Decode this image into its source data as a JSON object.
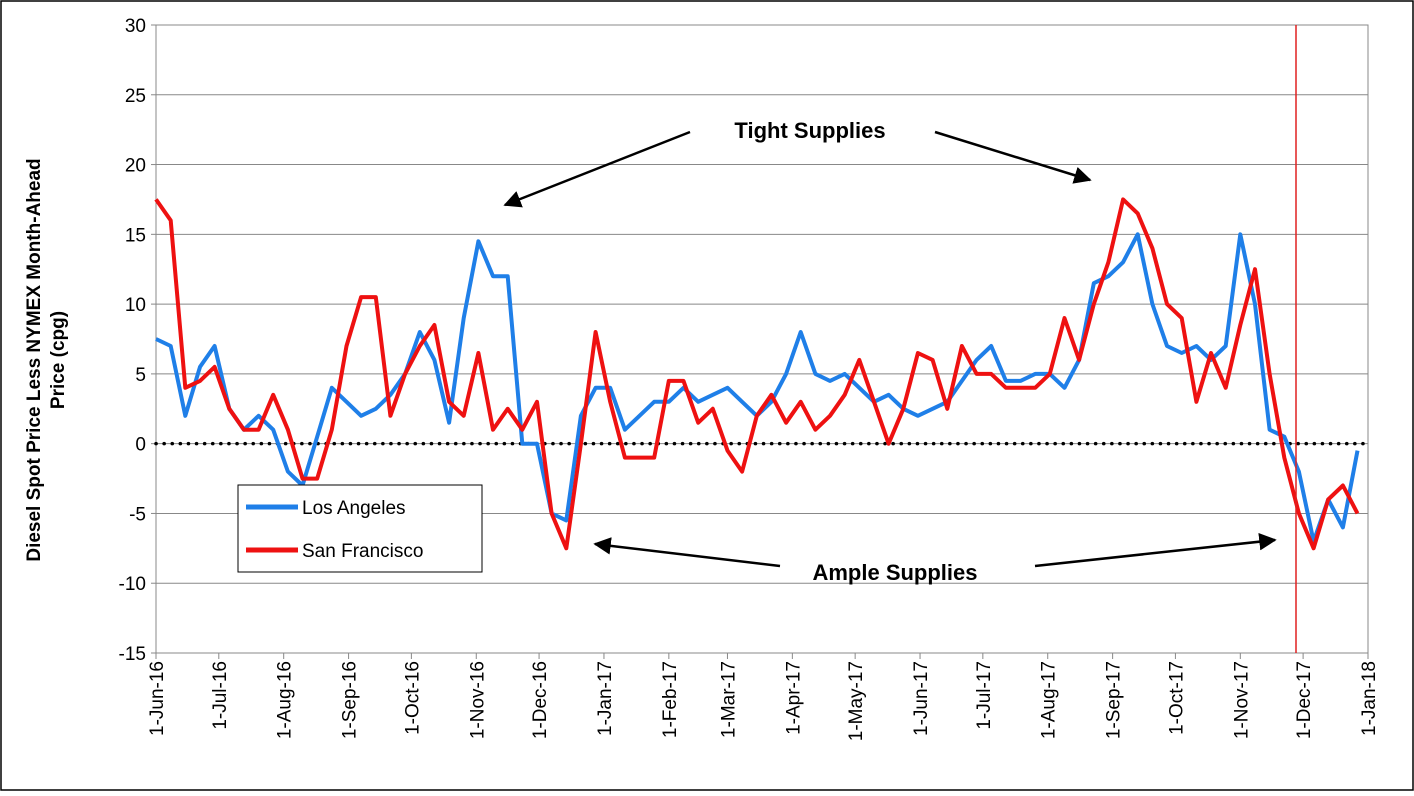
{
  "chart_data": {
    "type": "line",
    "ylabel": [
      "Diesel Spot Price Less NYMEX Month-Ahead",
      "Price (cpg)"
    ],
    "x": [
      "2016-06-01",
      "2016-06-08",
      "2016-06-15",
      "2016-06-22",
      "2016-06-29",
      "2016-07-06",
      "2016-07-13",
      "2016-07-20",
      "2016-07-27",
      "2016-08-03",
      "2016-08-10",
      "2016-08-17",
      "2016-08-24",
      "2016-08-31",
      "2016-09-07",
      "2016-09-14",
      "2016-09-21",
      "2016-09-28",
      "2016-10-05",
      "2016-10-12",
      "2016-10-19",
      "2016-10-26",
      "2016-11-02",
      "2016-11-09",
      "2016-11-16",
      "2016-11-23",
      "2016-11-30",
      "2016-12-07",
      "2016-12-14",
      "2016-12-21",
      "2016-12-28",
      "2017-01-04",
      "2017-01-11",
      "2017-01-18",
      "2017-01-25",
      "2017-02-01",
      "2017-02-08",
      "2017-02-15",
      "2017-02-22",
      "2017-03-01",
      "2017-03-08",
      "2017-03-15",
      "2017-03-22",
      "2017-03-29",
      "2017-04-05",
      "2017-04-12",
      "2017-04-19",
      "2017-04-26",
      "2017-05-03",
      "2017-05-10",
      "2017-05-17",
      "2017-05-24",
      "2017-05-31",
      "2017-06-07",
      "2017-06-14",
      "2017-06-21",
      "2017-06-28",
      "2017-07-05",
      "2017-07-12",
      "2017-07-19",
      "2017-07-26",
      "2017-08-02",
      "2017-08-09",
      "2017-08-16",
      "2017-08-23",
      "2017-08-30",
      "2017-09-06",
      "2017-09-13",
      "2017-09-20",
      "2017-09-27",
      "2017-10-04",
      "2017-10-11",
      "2017-10-18",
      "2017-10-25",
      "2017-11-01",
      "2017-11-08",
      "2017-11-15",
      "2017-11-22",
      "2017-11-29",
      "2017-12-06",
      "2017-12-13",
      "2017-12-20",
      "2017-12-27"
    ],
    "series": [
      {
        "name": "Los Angeles",
        "color": "#1f7fe8",
        "values": [
          7.5,
          7,
          2,
          5.5,
          7,
          2.5,
          1,
          2,
          1,
          -2,
          -3,
          0.5,
          4,
          3,
          2,
          2.5,
          3.5,
          5,
          8,
          6,
          1.5,
          9,
          14.5,
          12,
          12,
          0,
          0,
          -5,
          -5.5,
          2,
          4,
          4,
          1,
          2,
          3,
          3,
          4,
          3,
          3.5,
          4,
          3,
          2,
          3,
          5,
          8,
          5,
          4.5,
          5,
          4,
          3,
          3.5,
          2.5,
          2,
          2.5,
          3,
          4.5,
          6,
          7,
          4.5,
          4.5,
          5,
          5,
          4,
          6,
          11.5,
          12,
          13,
          15,
          10,
          7,
          6.5,
          7,
          6,
          7,
          15,
          10,
          1,
          0.5,
          -2,
          -7,
          -4,
          -6,
          -0.5
        ]
      },
      {
        "name": "San Francisco",
        "color": "#ee1111",
        "values": [
          17.5,
          16,
          4,
          4.5,
          5.5,
          2.5,
          1,
          1,
          3.5,
          1,
          -2.5,
          -2.5,
          1,
          7,
          10.5,
          10.5,
          2,
          5,
          7,
          8.5,
          3,
          2,
          6.5,
          1,
          2.5,
          1,
          3,
          -5,
          -7.5,
          0,
          8,
          3,
          -1,
          -1,
          -1,
          4.5,
          4.5,
          1.5,
          2.5,
          -0.5,
          -2,
          2,
          3.5,
          1.5,
          3,
          1,
          2,
          3.5,
          6,
          3,
          0,
          2.5,
          6.5,
          6,
          2.5,
          7,
          5,
          5,
          4,
          4,
          4,
          5,
          9,
          6,
          10,
          13,
          17.5,
          16.5,
          14,
          10,
          9,
          3,
          6.5,
          4,
          8.5,
          12.5,
          5,
          -1,
          -5,
          -7.5,
          -4,
          -3,
          -5
        ]
      }
    ],
    "xlim": [
      "2016-06-01",
      "2018-01-01"
    ],
    "xticks": [
      {
        "value": "2016-06-01",
        "label": "1-Jun-16"
      },
      {
        "value": "2016-07-01",
        "label": "1-Jul-16"
      },
      {
        "value": "2016-08-01",
        "label": "1-Aug-16"
      },
      {
        "value": "2016-09-01",
        "label": "1-Sep-16"
      },
      {
        "value": "2016-10-01",
        "label": "1-Oct-16"
      },
      {
        "value": "2016-11-01",
        "label": "1-Nov-16"
      },
      {
        "value": "2016-12-01",
        "label": "1-Dec-16"
      },
      {
        "value": "2017-01-01",
        "label": "1-Jan-17"
      },
      {
        "value": "2017-02-01",
        "label": "1-Feb-17"
      },
      {
        "value": "2017-03-01",
        "label": "1-Mar-17"
      },
      {
        "value": "2017-04-01",
        "label": "1-Apr-17"
      },
      {
        "value": "2017-05-01",
        "label": "1-May-17"
      },
      {
        "value": "2017-06-01",
        "label": "1-Jun-17"
      },
      {
        "value": "2017-07-01",
        "label": "1-Jul-17"
      },
      {
        "value": "2017-08-01",
        "label": "1-Aug-17"
      },
      {
        "value": "2017-09-01",
        "label": "1-Sep-17"
      },
      {
        "value": "2017-10-01",
        "label": "1-Oct-17"
      },
      {
        "value": "2017-11-01",
        "label": "1-Nov-17"
      },
      {
        "value": "2017-12-01",
        "label": "1-Dec-17"
      },
      {
        "value": "2018-01-01",
        "label": "1-Jan-18"
      }
    ],
    "ylim": [
      -15,
      30
    ],
    "yticks": [
      -15,
      -10,
      -5,
      0,
      5,
      10,
      15,
      20,
      25,
      30
    ],
    "grid": true,
    "annotations": [
      "Tight Supplies",
      "Ample Supplies"
    ]
  }
}
